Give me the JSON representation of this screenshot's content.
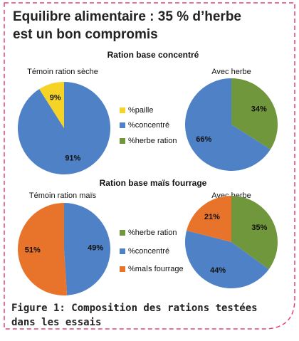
{
  "header": {
    "title": "Equilibre alimentaire : 35 % d’herbe est un bon compromis"
  },
  "groups": [
    {
      "heading": "Ration base concentré",
      "legend": [
        {
          "name": "%paille",
          "color": "#f5d327"
        },
        {
          "name": "%concentré",
          "color": "#4f81c6"
        },
        {
          "name": "%herbe ration",
          "color": "#71973d"
        }
      ]
    },
    {
      "heading": "Ration base maïs fourrage",
      "legend": [
        {
          "name": "%herbe ration",
          "color": "#71973d"
        },
        {
          "name": "%concentré",
          "color": "#4f81c6"
        },
        {
          "name": "%maïs fourrage",
          "color": "#e8732b"
        }
      ]
    }
  ],
  "chart_data": [
    {
      "type": "pie",
      "title": "Témoin ration sèche",
      "values": [
        91,
        9
      ],
      "value_labels": [
        "91%",
        "9%"
      ],
      "colors": [
        "#4f81c6",
        "#f5d327"
      ]
    },
    {
      "type": "pie",
      "title": "Avec herbe",
      "values": [
        34,
        66
      ],
      "value_labels": [
        "34%",
        "66%"
      ],
      "colors": [
        "#71973d",
        "#4f81c6"
      ]
    },
    {
      "type": "pie",
      "title": "Témoin ration maïs",
      "values": [
        49,
        51
      ],
      "value_labels": [
        "49%",
        "51%"
      ],
      "colors": [
        "#4f81c6",
        "#e8732b"
      ]
    },
    {
      "type": "pie",
      "title": "Avec herbe",
      "values": [
        35,
        44,
        21
      ],
      "value_labels": [
        "35%",
        "44%",
        "21%"
      ],
      "colors": [
        "#71973d",
        "#4f81c6",
        "#e8732b"
      ]
    }
  ],
  "caption": "Figure 1: Composition des rations testées dans les essais"
}
